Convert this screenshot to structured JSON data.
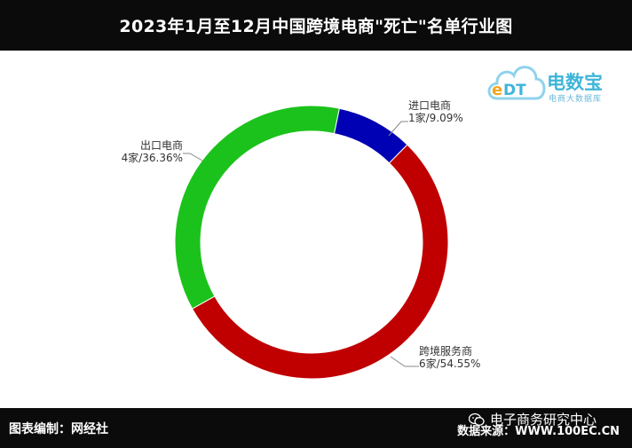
{
  "header": {
    "title": "2023年1月至12月中国跨境电商\"死亡\"名单行业图"
  },
  "logo": {
    "name": "电数宝",
    "subtitle": "电商大数据库",
    "mark": "eDT",
    "icon": "cloud-icon"
  },
  "footer": {
    "editor": "图表编制：网经社",
    "source": "数据来源：WWW.100EC.CN",
    "wechat": "电子商务研究中心",
    "wechat_icon": "wechat-icon"
  },
  "chart_data": {
    "type": "pie",
    "donut": true,
    "categories": [
      "进口电商",
      "跨境服务商",
      "出口电商"
    ],
    "values": [
      1,
      6,
      4
    ],
    "counts": [
      "1家",
      "6家",
      "4家"
    ],
    "percents": [
      "9.09%",
      "54.55%",
      "36.36%"
    ],
    "colors": [
      "#0000b4",
      "#c00000",
      "#1bc21b"
    ],
    "slice_labels": [
      "1家/9.09%",
      "6家/54.55%",
      "4家/36.36%"
    ]
  }
}
